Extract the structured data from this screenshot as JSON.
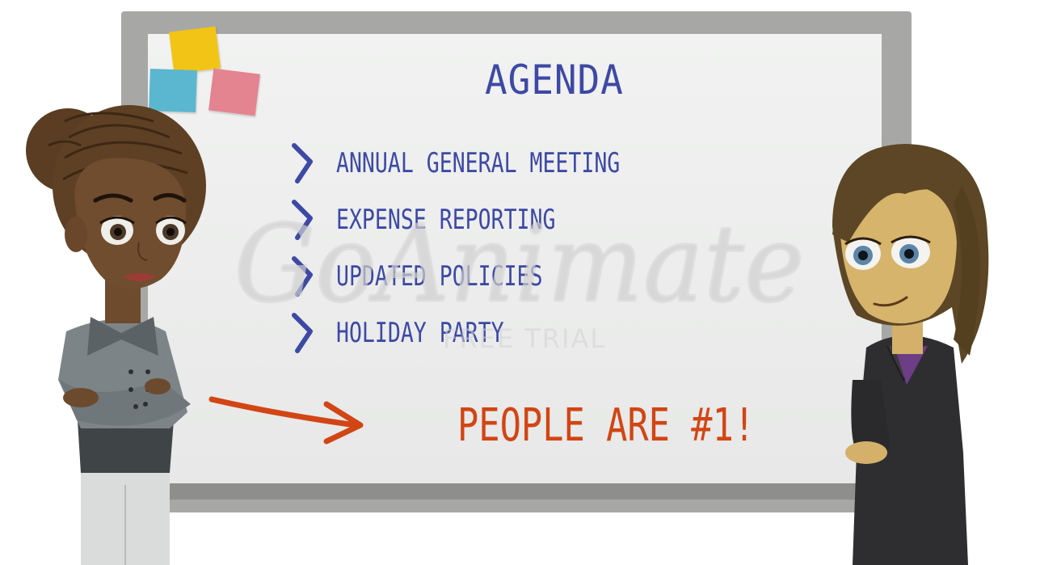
{
  "whiteboard": {
    "title": "AGENDA",
    "items": [
      {
        "label": "ANNUAL GENERAL MEETING",
        "icon": "chevron-right-icon"
      },
      {
        "label": "EXPENSE REPORTING",
        "icon": "chevron-right-icon"
      },
      {
        "label": "UPDATED POLICIES",
        "icon": "chevron-right-icon"
      },
      {
        "label": "HOLIDAY PARTY",
        "icon": "chevron-right-icon"
      }
    ],
    "highlight": "PEOPLE ARE #1!"
  },
  "watermark": {
    "brand": "GoAnimate",
    "sub": "FREE TRIAL"
  },
  "colors": {
    "agenda_text": "#3d49a4",
    "highlight_text": "#d24514",
    "arrow": "#d24514",
    "board_frame": "#a7a8a6",
    "board_face": "#eeefee",
    "note_yellow": "#f2c416",
    "note_blue": "#5ab7cf",
    "note_pink": "#e48490"
  },
  "characters": [
    {
      "name": "presenter-left",
      "icon": "woman-braids-character"
    },
    {
      "name": "presenter-right",
      "icon": "woman-brown-hair-character"
    }
  ]
}
